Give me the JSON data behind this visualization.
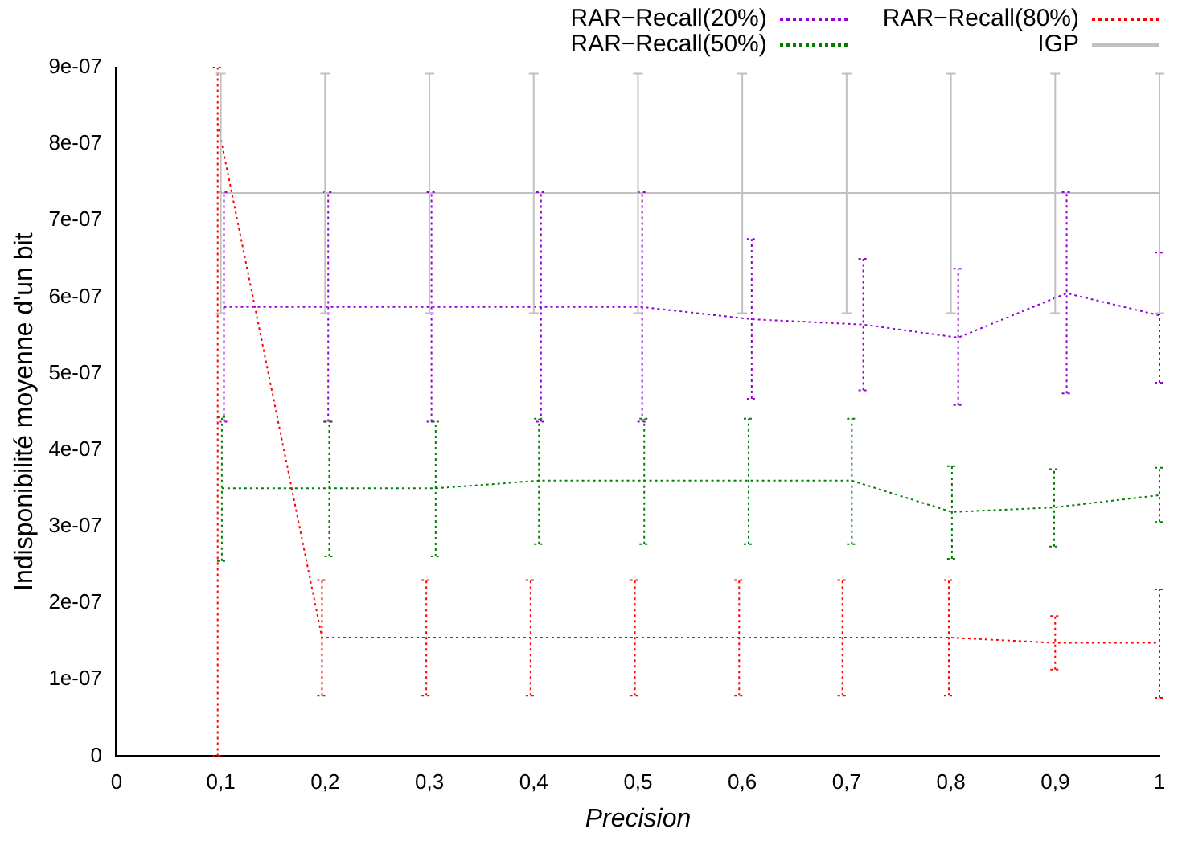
{
  "chart_data": {
    "type": "line",
    "xlabel": "Precision",
    "ylabel": "Indisponibilité moyenne d'un bit",
    "xlim": [
      0,
      1
    ],
    "xticks": [
      0,
      {
        "value": 0.1,
        "label": "0,1"
      },
      {
        "value": 0.2,
        "label": "0,2"
      },
      {
        "value": 0.3,
        "label": "0,3"
      },
      {
        "value": 0.4,
        "label": "0,4"
      },
      {
        "value": 0.5,
        "label": "0,5"
      },
      {
        "value": 0.6,
        "label": "0,6"
      },
      {
        "value": 0.7,
        "label": "0,7"
      },
      {
        "value": 0.8,
        "label": "0,8"
      },
      {
        "value": 0.9,
        "label": "0,9"
      },
      1
    ],
    "ylim": [
      0,
      9e-07
    ],
    "yticks": [
      0,
      {
        "value": 1e-07,
        "label": "1e-07"
      },
      {
        "value": 2e-07,
        "label": "2e-07"
      },
      {
        "value": 3e-07,
        "label": "3e-07"
      },
      {
        "value": 4e-07,
        "label": "4e-07"
      },
      {
        "value": 5e-07,
        "label": "5e-07"
      },
      {
        "value": 6e-07,
        "label": "6e-07"
      },
      {
        "value": 7e-07,
        "label": "7e-07"
      },
      {
        "value": 8e-07,
        "label": "8e-07"
      },
      {
        "value": 9e-07,
        "label": "9e-07"
      }
    ],
    "grid": false,
    "legend": "top right",
    "marker": "none",
    "series": [
      {
        "name": "RAR−Recall(20%)",
        "color": "#9400d3",
        "line_style": "dotted",
        "x": [
          0.103,
          0.203,
          0.302,
          0.407,
          0.504,
          0.609,
          0.716,
          0.807,
          0.911,
          1.0
        ],
        "values": [
          5.87e-07,
          5.87e-07,
          5.87e-07,
          5.87e-07,
          5.87e-07,
          5.71e-07,
          5.64e-07,
          5.47e-07,
          6.05e-07,
          5.76e-07
        ],
        "errors": [
          [
            4.37e-07,
            7.37e-07
          ],
          [
            4.37e-07,
            7.37e-07
          ],
          [
            4.37e-07,
            7.37e-07
          ],
          [
            4.37e-07,
            7.37e-07
          ],
          [
            4.37e-07,
            7.37e-07
          ],
          [
            4.67e-07,
            6.76e-07
          ],
          [
            4.78e-07,
            6.5e-07
          ],
          [
            4.59e-07,
            6.37e-07
          ],
          [
            4.74e-07,
            7.37e-07
          ],
          [
            4.88e-07,
            6.58e-07
          ]
        ]
      },
      {
        "name": "RAR−Recall(50%)",
        "color": "#008000",
        "line_style": "dotted",
        "x": [
          0.101,
          0.204,
          0.306,
          0.405,
          0.506,
          0.606,
          0.705,
          0.801,
          0.899,
          1.0
        ],
        "values": [
          3.5e-07,
          3.5e-07,
          3.5e-07,
          3.6e-07,
          3.6e-07,
          3.6e-07,
          3.6e-07,
          3.19e-07,
          3.25e-07,
          3.41e-07
        ],
        "errors": [
          [
            2.55e-07,
            4.43e-07
          ],
          [
            2.61e-07,
            4.37e-07
          ],
          [
            2.61e-07,
            4.37e-07
          ],
          [
            2.77e-07,
            4.41e-07
          ],
          [
            2.77e-07,
            4.41e-07
          ],
          [
            2.77e-07,
            4.41e-07
          ],
          [
            2.77e-07,
            4.41e-07
          ],
          [
            2.58e-07,
            3.79e-07
          ],
          [
            2.74e-07,
            3.75e-07
          ],
          [
            3.06e-07,
            3.77e-07
          ]
        ]
      },
      {
        "name": "RAR−Recall(80%)",
        "color": "#ff0000",
        "line_style": "dotted",
        "x": [
          0.097,
          0.197,
          0.297,
          0.397,
          0.497,
          0.597,
          0.696,
          0.798,
          0.9,
          1.0
        ],
        "values": [
          8.27e-07,
          1.55e-07,
          1.55e-07,
          1.55e-07,
          1.55e-07,
          1.55e-07,
          1.55e-07,
          1.55e-07,
          1.48e-07,
          1.48e-07
        ],
        "errors": [
          [
            0,
            9e-07
          ],
          [
            7.9e-08,
            2.3e-07
          ],
          [
            7.9e-08,
            2.3e-07
          ],
          [
            7.9e-08,
            2.3e-07
          ],
          [
            7.9e-08,
            2.3e-07
          ],
          [
            7.9e-08,
            2.3e-07
          ],
          [
            7.9e-08,
            2.3e-07
          ],
          [
            7.9e-08,
            2.3e-07
          ],
          [
            1.13e-07,
            1.83e-07
          ],
          [
            7.6e-08,
            2.18e-07
          ]
        ]
      },
      {
        "name": "IGP",
        "color": "#c0c0c0",
        "line_style": "solid",
        "x": [
          0.1,
          0.2,
          0.3,
          0.4,
          0.5,
          0.6,
          0.7,
          0.8,
          0.9,
          1.0
        ],
        "values": [
          7.36e-07,
          7.36e-07,
          7.36e-07,
          7.36e-07,
          7.36e-07,
          7.36e-07,
          7.36e-07,
          7.36e-07,
          7.36e-07,
          7.36e-07
        ],
        "errors": [
          [
            5.79e-07,
            8.92e-07
          ],
          [
            5.79e-07,
            8.92e-07
          ],
          [
            5.79e-07,
            8.92e-07
          ],
          [
            5.79e-07,
            8.92e-07
          ],
          [
            5.79e-07,
            8.92e-07
          ],
          [
            5.79e-07,
            8.92e-07
          ],
          [
            5.79e-07,
            8.92e-07
          ],
          [
            5.79e-07,
            8.92e-07
          ],
          [
            5.79e-07,
            8.92e-07
          ],
          [
            5.79e-07,
            8.92e-07
          ]
        ]
      }
    ]
  }
}
